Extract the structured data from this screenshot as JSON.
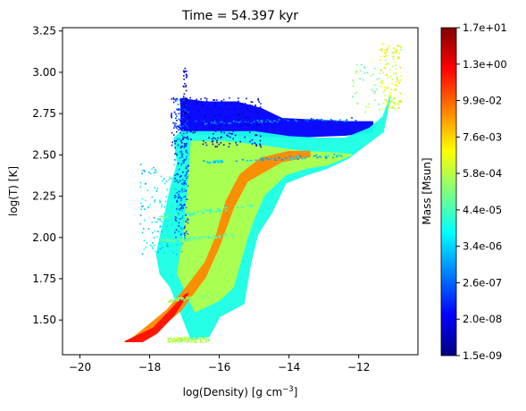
{
  "chart_data": {
    "type": "heatmap",
    "title": "Time = 54.397 kyr",
    "xlabel": "log(Density) [g cm",
    "xlabel_superscript": "−3",
    "xlabel_suffix": "]",
    "ylabel": "log(T) [K]",
    "xlim": [
      -20.5,
      -10.3
    ],
    "ylim": [
      1.29,
      3.27
    ],
    "x_ticks": [
      -20,
      -18,
      -16,
      -14,
      -12
    ],
    "x_tick_labels": [
      "−20",
      "−18",
      "−16",
      "−14",
      "−12"
    ],
    "y_ticks": [
      1.5,
      1.75,
      2.0,
      2.25,
      2.5,
      2.75,
      3.0,
      3.25
    ],
    "y_tick_labels": [
      "1.50",
      "1.75",
      "2.00",
      "2.25",
      "2.50",
      "2.75",
      "3.00",
      "3.25"
    ],
    "grid": false,
    "colormap": "jet",
    "colorbar": {
      "label": "Mass [Msun]",
      "scale": "log",
      "tick_labels": [
        "1.5e-09",
        "2.0e-08",
        "2.6e-07",
        "3.4e-06",
        "4.4e-05",
        "5.8e-04",
        "7.6e-03",
        "9.9e-02",
        "1.3e+00",
        "1.7e+01"
      ],
      "stops": [
        "#00007f",
        "#0000ff",
        "#007fff",
        "#00ffff",
        "#7fff7f",
        "#ffff00",
        "#ff7f00",
        "#ff0000",
        "#7f0000"
      ]
    },
    "regions": [
      {
        "name": "hot-diffuse-band",
        "level": 0.12,
        "polygon": [
          [
            -17.1,
            2.84
          ],
          [
            -16.4,
            2.82
          ],
          [
            -15.5,
            2.82
          ],
          [
            -14.8,
            2.78
          ],
          [
            -14.2,
            2.72
          ],
          [
            -13.3,
            2.71
          ],
          [
            -12.3,
            2.7
          ],
          [
            -11.6,
            2.7
          ],
          [
            -11.6,
            2.64
          ],
          [
            -12.4,
            2.62
          ],
          [
            -13.6,
            2.61
          ],
          [
            -14.6,
            2.61
          ],
          [
            -15.6,
            2.62
          ],
          [
            -16.8,
            2.63
          ],
          [
            -17.1,
            2.65
          ]
        ]
      },
      {
        "name": "cold-branch-edge",
        "level": 0.4,
        "polygon": [
          [
            -17.3,
            2.6
          ],
          [
            -17.1,
            2.64
          ],
          [
            -16.2,
            2.64
          ],
          [
            -15.0,
            2.64
          ],
          [
            -14.0,
            2.61
          ],
          [
            -13.2,
            2.6
          ],
          [
            -12.4,
            2.6
          ],
          [
            -11.7,
            2.66
          ],
          [
            -11.3,
            2.73
          ],
          [
            -11.1,
            2.85
          ],
          [
            -11.3,
            2.64
          ],
          [
            -11.8,
            2.56
          ],
          [
            -12.3,
            2.48
          ],
          [
            -12.9,
            2.42
          ],
          [
            -13.5,
            2.38
          ],
          [
            -14.1,
            2.33
          ],
          [
            -14.5,
            2.15
          ],
          [
            -14.9,
            2.02
          ],
          [
            -15.1,
            1.85
          ],
          [
            -15.3,
            1.6
          ],
          [
            -16.0,
            1.52
          ],
          [
            -16.3,
            1.4
          ],
          [
            -16.8,
            1.38
          ],
          [
            -17.4,
            1.7
          ],
          [
            -17.7,
            1.78
          ],
          [
            -17.8,
            1.9
          ],
          [
            -17.6,
            2.1
          ],
          [
            -17.4,
            2.3
          ],
          [
            -17.2,
            2.45
          ]
        ]
      },
      {
        "name": "cold-branch-core",
        "level": 0.55,
        "polygon": [
          [
            -16.8,
            2.58
          ],
          [
            -15.8,
            2.58
          ],
          [
            -14.6,
            2.55
          ],
          [
            -13.6,
            2.52
          ],
          [
            -12.6,
            2.51
          ],
          [
            -12.2,
            2.5
          ],
          [
            -12.9,
            2.44
          ],
          [
            -13.5,
            2.42
          ],
          [
            -14.1,
            2.38
          ],
          [
            -14.7,
            2.26
          ],
          [
            -15.0,
            2.12
          ],
          [
            -15.2,
            2.0
          ],
          [
            -15.4,
            1.85
          ],
          [
            -15.6,
            1.7
          ],
          [
            -16.0,
            1.62
          ],
          [
            -16.7,
            1.55
          ],
          [
            -17.2,
            1.78
          ],
          [
            -17.0,
            2.05
          ],
          [
            -16.9,
            2.3
          ]
        ]
      },
      {
        "name": "dense-filament-outer",
        "level": 0.74,
        "polygon": [
          [
            -18.6,
            1.37
          ],
          [
            -17.5,
            1.56
          ],
          [
            -16.9,
            1.71
          ],
          [
            -16.4,
            1.85
          ],
          [
            -16.1,
            2.0
          ],
          [
            -15.8,
            2.22
          ],
          [
            -15.4,
            2.38
          ],
          [
            -14.8,
            2.48
          ],
          [
            -14.0,
            2.52
          ],
          [
            -13.4,
            2.52
          ],
          [
            -13.4,
            2.49
          ],
          [
            -14.2,
            2.46
          ],
          [
            -15.2,
            2.34
          ],
          [
            -15.6,
            2.18
          ],
          [
            -16.0,
            1.95
          ],
          [
            -16.4,
            1.76
          ],
          [
            -17.1,
            1.56
          ],
          [
            -18.0,
            1.4
          ]
        ]
      },
      {
        "name": "dense-filament-core",
        "level": 0.86,
        "polygon": [
          [
            -18.7,
            1.37
          ],
          [
            -17.9,
            1.45
          ],
          [
            -17.4,
            1.56
          ],
          [
            -17.0,
            1.65
          ],
          [
            -16.9,
            1.66
          ],
          [
            -17.3,
            1.53
          ],
          [
            -17.8,
            1.42
          ],
          [
            -18.2,
            1.37
          ]
        ]
      }
    ],
    "sparse_streaks": [
      {
        "level": 0.25,
        "from": [
          -16.7,
          2.7
        ],
        "to": [
          -12.0,
          2.72
        ]
      },
      {
        "level": 0.32,
        "from": [
          -16.5,
          2.46
        ],
        "to": [
          -12.5,
          2.5
        ]
      },
      {
        "level": 0.45,
        "from": [
          -17.8,
          2.12
        ],
        "to": [
          -15.0,
          2.2
        ]
      },
      {
        "level": 0.47,
        "from": [
          -17.7,
          1.98
        ],
        "to": [
          -15.5,
          2.02
        ]
      },
      {
        "level": 0.52,
        "from": [
          -17.5,
          1.62
        ],
        "to": [
          -16.0,
          1.66
        ]
      }
    ],
    "scatter_clusters": [
      {
        "name": "hot-diffuse-cloud",
        "level": 0.1,
        "count": 260,
        "x": [
          -17.4,
          -14.8
        ],
        "y": [
          2.55,
          2.85
        ]
      },
      {
        "name": "vertical-column-low-density",
        "level": 0.2,
        "count": 220,
        "x": [
          -17.3,
          -16.9
        ],
        "y": [
          2.0,
          2.85
        ]
      },
      {
        "name": "blue-spikes",
        "level": 0.05,
        "count": 35,
        "x": [
          -17.05,
          -16.95
        ],
        "y": [
          2.75,
          3.03
        ]
      },
      {
        "name": "low-density-wisps",
        "level": 0.35,
        "count": 160,
        "x": [
          -18.3,
          -17.0
        ],
        "y": [
          1.9,
          2.45
        ]
      },
      {
        "name": "upper-right-tail",
        "level": 0.6,
        "count": 140,
        "x": [
          -11.4,
          -10.8
        ],
        "y": [
          2.78,
          3.18
        ]
      },
      {
        "name": "top-right-sparse",
        "level": 0.5,
        "count": 40,
        "x": [
          -12.2,
          -11.4
        ],
        "y": [
          2.75,
          3.05
        ]
      },
      {
        "name": "bottom-floor",
        "level": 0.55,
        "count": 120,
        "x": [
          -17.5,
          -16.3
        ],
        "y": [
          1.37,
          1.4
        ]
      }
    ]
  }
}
